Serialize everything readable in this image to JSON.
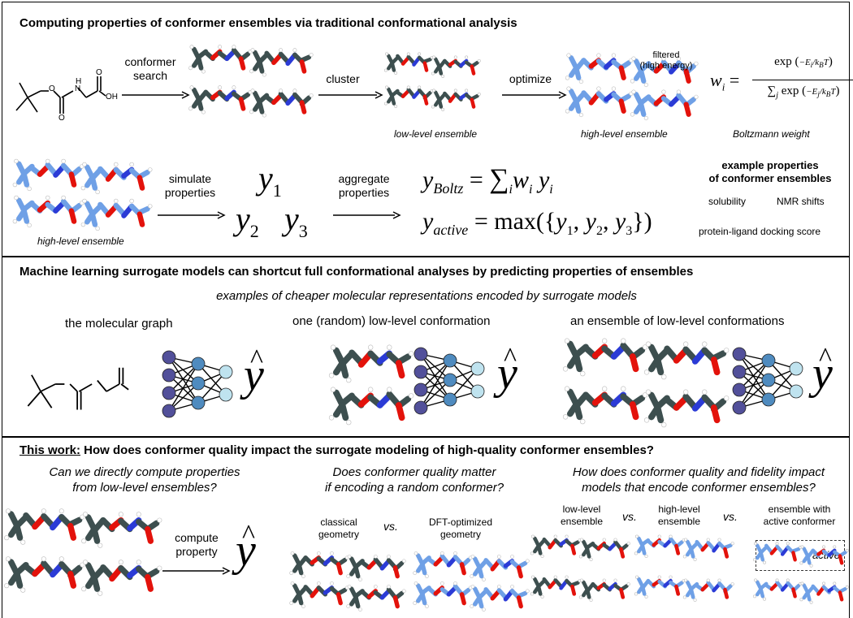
{
  "panel1": {
    "title": "Computing properties of conformer ensembles via traditional conformational analysis",
    "arrow_conformer_search": [
      "conformer",
      "search"
    ],
    "arrow_cluster": "cluster",
    "arrow_optimize": "optimize",
    "filtered_label": [
      "filtered",
      "(high energy)"
    ],
    "low_level_ensemble": "low-level ensemble",
    "high_level_ensemble": "high-level ensemble",
    "boltzmann_weight": "Boltzmann weight",
    "boltzmann_lhs": "w",
    "boltzmann_sub": "i",
    "num_exp": "exp",
    "den_sum": "∑",
    "den_sub": "j",
    "frac_num_i": "−E",
    "frac_sub_i": "i",
    "frac_den": "k",
    "frac_den_sub": "B",
    "frac_den_T": "T",
    "frac_num_j": "−E",
    "frac_sub_j": "j",
    "high_level_ensemble_2": "high-level ensemble",
    "simulate_properties": [
      "simulate",
      "properties"
    ],
    "aggregate_properties": [
      "aggregate",
      "properties"
    ],
    "y_symbol": "y",
    "y1_sub": "1",
    "y2_sub": "2",
    "y3_sub": "3",
    "y_boltz_sub": "Boltz",
    "y_active_sub": "active",
    "max_label": "max",
    "sum_symbol": "∑",
    "sum_sub": "i",
    "w_symbol": "w",
    "w_sub": "i",
    "yi_sub": "i",
    "example_title": [
      "example properties",
      "of conformer ensembles"
    ],
    "example_props": [
      "solubility",
      "NMR shifts",
      "protein-ligand docking score"
    ],
    "oh_label": "OH",
    "h_label": "H",
    "n_label": "N",
    "o_label": "O"
  },
  "panel2": {
    "title": "Machine learning surrogate models can shortcut full conformational analyses by predicting properties of ensembles",
    "subtitle": "examples of cheaper molecular representations encoded by surrogate models",
    "col_titles": [
      "the molecular graph",
      "one (random) low-level conformation",
      "an ensemble of low-level conformations"
    ],
    "yhat": "y"
  },
  "panel3": {
    "title_prefix": "This work:",
    "title_rest": " How does conformer quality impact the surrogate modeling of high-quality conformer ensembles?",
    "q1": [
      "Can we directly compute properties",
      "from low-level ensembles?"
    ],
    "q2": [
      "Does conformer quality matter",
      "if encoding a random conformer?"
    ],
    "q3": [
      "How does conformer quality and fidelity impact",
      "models that encode conformer ensembles?"
    ],
    "compute_property": [
      "compute",
      "property"
    ],
    "classical": [
      "classical",
      "geometry"
    ],
    "vs": "vs.",
    "dft": [
      "DFT-optimized",
      "geometry"
    ],
    "low_level": [
      "low-level",
      "ensemble"
    ],
    "high_level": [
      "high-level",
      "ensemble"
    ],
    "ensemble_active": [
      "ensemble with",
      "active conformer"
    ],
    "active": "active",
    "yhat": "y"
  },
  "colors": {
    "carbon_dark": "#3d4f4f",
    "carbon_light": "#6fa0e6",
    "oxygen": "#e3120b",
    "nitrogen": "#2b3bd6",
    "hydrogen": "#ffffff",
    "nn_dark": "#52509a",
    "nn_mid": "#4f8bbf",
    "nn_light": "#bfe3ef"
  }
}
